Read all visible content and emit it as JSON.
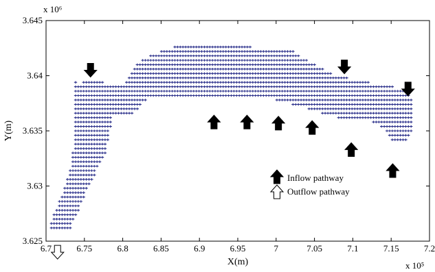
{
  "chart_data": {
    "type": "scatter",
    "title": "",
    "xlabel": "X(m)",
    "ylabel": "Y(m)",
    "x_exponent": "x 10⁵",
    "y_exponent": "x 10⁶",
    "xlim": [
      6.7,
      7.2
    ],
    "ylim": [
      3.625,
      3.645
    ],
    "x_unit_scale": 100000,
    "y_unit_scale": 1000000,
    "xticks": [
      "6.7",
      "6.75",
      "6.8",
      "6.85",
      "6.9",
      "6.95",
      "7",
      "7.05",
      "7.1",
      "7.15",
      "7.2"
    ],
    "yticks": [
      "3.625",
      "3.63",
      "3.635",
      "3.64",
      "3.645"
    ],
    "grid": false,
    "legend_position": "center-right",
    "series": [
      {
        "marker": "plus",
        "color": "#2a2f8a",
        "grid_spacing_x": 0.0035,
        "grid_spacing_y": 0.0004,
        "domain_outline": [
          [
            6.707,
            3.626
          ],
          [
            6.731,
            3.626
          ],
          [
            6.755,
            3.6298
          ],
          [
            6.778,
            3.633
          ],
          [
            6.787,
            3.6365
          ],
          [
            6.812,
            3.6365
          ],
          [
            6.832,
            3.6378
          ],
          [
            6.872,
            3.6378
          ],
          [
            6.915,
            3.6378
          ],
          [
            6.96,
            3.6378
          ],
          [
            7.0,
            3.6378
          ],
          [
            7.04,
            3.637
          ],
          [
            7.08,
            3.6362
          ],
          [
            7.12,
            3.636
          ],
          [
            7.14,
            3.6352
          ],
          [
            7.152,
            3.6338
          ],
          [
            7.168,
            3.6338
          ],
          [
            7.178,
            3.635
          ],
          [
            7.178,
            3.638
          ],
          [
            7.168,
            3.6388
          ],
          [
            7.12,
            3.6394
          ],
          [
            7.08,
            3.64
          ],
          [
            7.04,
            3.6414
          ],
          [
            7.02,
            3.6424
          ],
          [
            6.94,
            3.6427
          ],
          [
            6.87,
            3.6427
          ],
          [
            6.84,
            3.642
          ],
          [
            6.82,
            3.6412
          ],
          [
            6.808,
            3.6398
          ],
          [
            6.8,
            3.6392
          ],
          [
            6.787,
            3.6392
          ],
          [
            6.778,
            3.6392
          ],
          [
            6.772,
            3.6396
          ],
          [
            6.753,
            3.6396
          ],
          [
            6.745,
            3.6392
          ],
          [
            6.737,
            3.6395
          ],
          [
            6.738,
            3.637
          ],
          [
            6.738,
            3.6345
          ],
          [
            6.733,
            3.632
          ],
          [
            6.722,
            3.6295
          ],
          [
            6.713,
            3.628
          ],
          [
            6.707,
            3.6268
          ]
        ]
      }
    ],
    "arrows": {
      "inflow": [
        {
          "x": 6.758,
          "y": 3.6405,
          "dir": "down"
        },
        {
          "x": 6.919,
          "y": 3.6358,
          "dir": "up"
        },
        {
          "x": 6.962,
          "y": 3.6358,
          "dir": "up"
        },
        {
          "x": 7.003,
          "y": 3.6357,
          "dir": "up"
        },
        {
          "x": 7.047,
          "y": 3.6353,
          "dir": "up"
        },
        {
          "x": 7.089,
          "y": 3.6408,
          "dir": "down"
        },
        {
          "x": 7.098,
          "y": 3.6333,
          "dir": "up"
        },
        {
          "x": 7.152,
          "y": 3.6314,
          "dir": "up"
        },
        {
          "x": 7.172,
          "y": 3.6388,
          "dir": "down"
        }
      ],
      "outflow": [
        {
          "x": 6.715,
          "y": 3.624,
          "dir": "down"
        }
      ]
    },
    "legend": [
      {
        "type": "inflow",
        "label": "Inflow pathway"
      },
      {
        "type": "outflow",
        "label": "Outflow pathway"
      }
    ]
  }
}
